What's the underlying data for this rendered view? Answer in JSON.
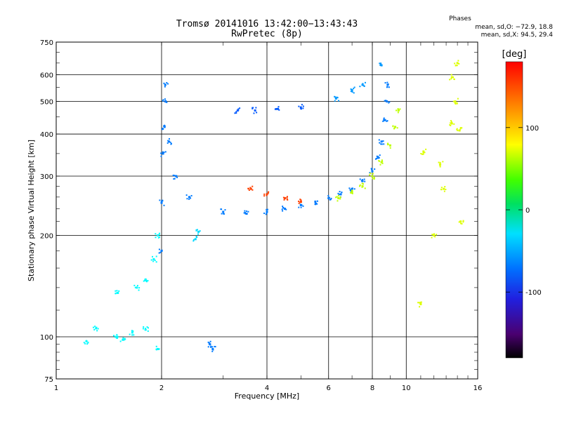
{
  "header": {
    "title_line1": "Tromsø 20141016 13:42:00−13:43:43",
    "title_line2": "RwPretec (8p)"
  },
  "stats": {
    "heading": "Phases",
    "line_o": "mean, sd,O: −72.9, 18.8",
    "line_x": "mean, sd,X:  94.5, 29.4"
  },
  "chart_data": {
    "type": "scatter",
    "xlabel": "Frequency [MHz]",
    "ylabel": "Stationary phase Virtual Height [km]",
    "x_scale": "log",
    "y_scale": "log",
    "xlim": [
      1,
      16
    ],
    "ylim": [
      75,
      750
    ],
    "x_ticks": [
      1,
      2,
      4,
      6,
      8,
      10,
      16
    ],
    "y_ticks": [
      75,
      100,
      200,
      300,
      400,
      500,
      600,
      750
    ],
    "grid": true,
    "colorbar": {
      "label": "[deg]",
      "ticks": [
        100,
        0,
        -100
      ],
      "range": [
        -180,
        180
      ],
      "colormap": "rainbow (black-purple-blue-cyan-green-yellow-red)"
    },
    "series": [
      {
        "points": [
          [
            2.0,
            180
          ],
          [
            2.0,
            250
          ],
          [
            2.02,
            350
          ],
          [
            2.04,
            420
          ],
          [
            2.05,
            500
          ],
          [
            2.05,
            560
          ],
          [
            2.1,
            380
          ],
          [
            2.2,
            300
          ],
          [
            2.4,
            260
          ],
          [
            3.0,
            235
          ],
          [
            3.5,
            232
          ],
          [
            4.0,
            235
          ],
          [
            4.5,
            240
          ],
          [
            5.0,
            246
          ],
          [
            5.5,
            252
          ],
          [
            6.0,
            258
          ],
          [
            6.5,
            265
          ],
          [
            7.0,
            275
          ],
          [
            7.5,
            290
          ],
          [
            8.0,
            310
          ],
          [
            8.3,
            340
          ],
          [
            8.5,
            380
          ],
          [
            8.7,
            440
          ],
          [
            8.8,
            500
          ],
          [
            8.85,
            560
          ]
        ],
        "phase": -100
      },
      {
        "points": [
          [
            6.4,
            258
          ],
          [
            7.0,
            268
          ],
          [
            7.5,
            280
          ],
          [
            8.0,
            300
          ],
          [
            8.5,
            330
          ],
          [
            9.0,
            370
          ],
          [
            9.3,
            420
          ],
          [
            9.5,
            470
          ]
        ],
        "phase": 80
      },
      {
        "points": [
          [
            3.6,
            275
          ],
          [
            4.0,
            265
          ],
          [
            4.5,
            258
          ],
          [
            5.0,
            252
          ]
        ],
        "phase": 160
      },
      {
        "points": [
          [
            3.3,
            470
          ],
          [
            3.7,
            470
          ],
          [
            4.3,
            475
          ],
          [
            5.0,
            480
          ]
        ],
        "phase": -110
      },
      {
        "points": [
          [
            6.3,
            510
          ],
          [
            7.0,
            540
          ],
          [
            7.5,
            560
          ],
          [
            8.5,
            640
          ]
        ],
        "phase": -90
      },
      {
        "points": [
          [
            1.5,
            135
          ],
          [
            1.7,
            140
          ],
          [
            1.8,
            148
          ],
          [
            1.9,
            170
          ],
          [
            1.95,
            200
          ]
        ],
        "phase": -60
      },
      {
        "points": [
          [
            2.5,
            195
          ],
          [
            2.55,
            205
          ]
        ],
        "phase": -70
      },
      {
        "points": [
          [
            2.75,
            95
          ],
          [
            2.8,
            92
          ]
        ],
        "phase": -100
      },
      {
        "points": [
          [
            1.22,
            97
          ],
          [
            1.3,
            106
          ],
          [
            1.48,
            100
          ],
          [
            1.55,
            98
          ],
          [
            1.65,
            103
          ],
          [
            1.8,
            105
          ],
          [
            1.95,
            92
          ]
        ],
        "phase": -60
      },
      {
        "points": [
          [
            11.0,
            125
          ],
          [
            11.2,
            355
          ],
          [
            12.0,
            200
          ],
          [
            12.5,
            325
          ],
          [
            12.8,
            275
          ],
          [
            13.5,
            590
          ],
          [
            13.5,
            430
          ],
          [
            13.8,
            500
          ],
          [
            14.0,
            650
          ],
          [
            14.2,
            410
          ],
          [
            14.3,
            220
          ]
        ],
        "phase": 90
      }
    ]
  }
}
